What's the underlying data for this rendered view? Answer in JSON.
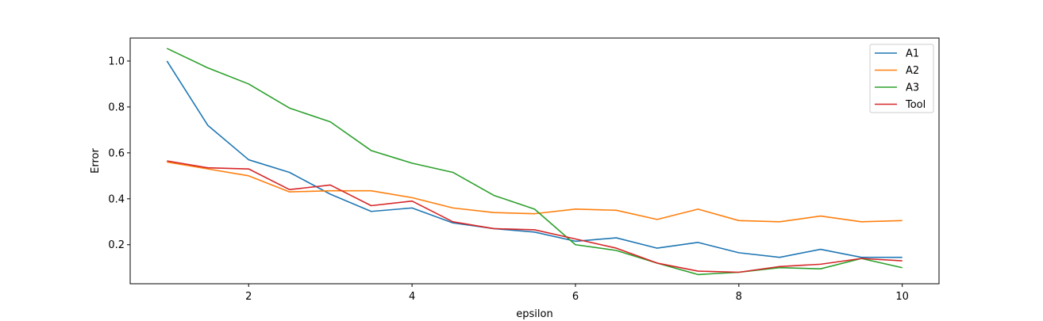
{
  "chart_data": {
    "type": "line",
    "title": "",
    "xlabel": "epsilon",
    "ylabel": "Error",
    "xlim": [
      0.55,
      10.45
    ],
    "ylim": [
      0.03,
      1.1
    ],
    "xticks": [
      2,
      4,
      6,
      8,
      10
    ],
    "yticks": [
      0.2,
      0.4,
      0.6,
      0.8,
      1.0
    ],
    "xtick_labels": [
      "2",
      "4",
      "6",
      "8",
      "10"
    ],
    "ytick_labels": [
      "0.2",
      "0.4",
      "0.6",
      "0.8",
      "1.0"
    ],
    "grid": false,
    "legend_position": "top-right",
    "x": [
      1.0,
      1.5,
      2.0,
      2.5,
      3.0,
      3.5,
      4.0,
      4.5,
      5.0,
      5.5,
      6.0,
      6.5,
      7.0,
      7.5,
      8.0,
      8.5,
      9.0,
      9.5,
      10.0
    ],
    "series": [
      {
        "name": "A1",
        "color": "#1f77b4",
        "values": [
          1.0,
          0.72,
          0.57,
          0.515,
          0.42,
          0.345,
          0.36,
          0.295,
          0.27,
          0.255,
          0.215,
          0.23,
          0.185,
          0.21,
          0.165,
          0.145,
          0.18,
          0.145,
          0.145
        ]
      },
      {
        "name": "A2",
        "color": "#ff7f0e",
        "values": [
          0.56,
          0.53,
          0.5,
          0.43,
          0.435,
          0.435,
          0.405,
          0.36,
          0.34,
          0.335,
          0.355,
          0.35,
          0.31,
          0.355,
          0.305,
          0.3,
          0.325,
          0.3,
          0.305
        ]
      },
      {
        "name": "A3",
        "color": "#2ca02c",
        "values": [
          1.055,
          0.97,
          0.9,
          0.795,
          0.735,
          0.61,
          0.555,
          0.515,
          0.415,
          0.355,
          0.2,
          0.175,
          0.12,
          0.07,
          0.08,
          0.1,
          0.095,
          0.14,
          0.1
        ]
      },
      {
        "name": "Tool",
        "color": "#d62728",
        "values": [
          0.565,
          0.535,
          0.53,
          0.44,
          0.46,
          0.37,
          0.39,
          0.3,
          0.27,
          0.265,
          0.225,
          0.185,
          0.12,
          0.085,
          0.08,
          0.105,
          0.115,
          0.14,
          0.13
        ]
      }
    ]
  }
}
